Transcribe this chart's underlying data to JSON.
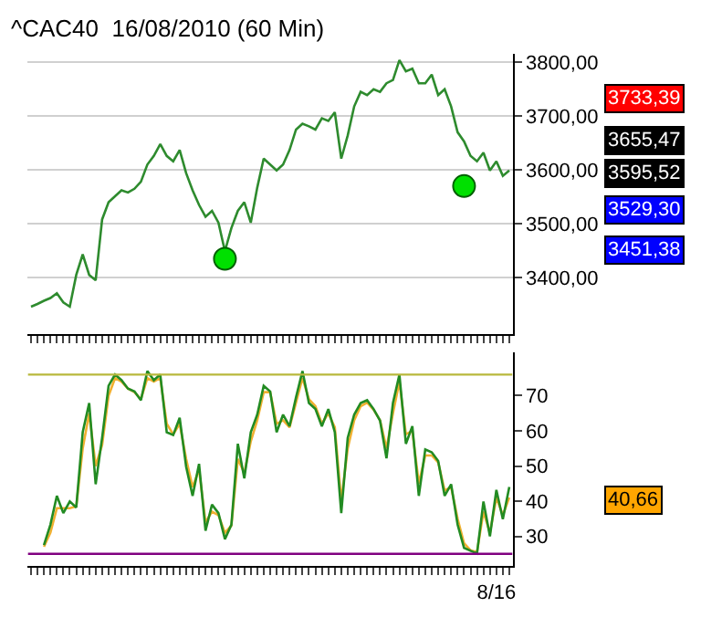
{
  "chart_data": [
    {
      "type": "line",
      "title": "^CAC40  16/08/2010 (60 Min)",
      "tick_labels": "y",
      "grid": "y",
      "categories": [
        null,
        null,
        null,
        null,
        null,
        null,
        null,
        null,
        null,
        null,
        null,
        null,
        null,
        null,
        null,
        null,
        null,
        null,
        null,
        null,
        null,
        null,
        null,
        null,
        null,
        null,
        null,
        null,
        null,
        null,
        null,
        null,
        null,
        null,
        null,
        null,
        null,
        null,
        null,
        null,
        null,
        null,
        null,
        null,
        null,
        null,
        null,
        null,
        null,
        null,
        null,
        null,
        null,
        null,
        null,
        null,
        null,
        null,
        null,
        null,
        null,
        null,
        null,
        null,
        null,
        null,
        null,
        null,
        null,
        null,
        null,
        null,
        null,
        null,
        null
      ],
      "series": [
        {
          "color": "#2e8b2e",
          "values": [
            3346,
            3351,
            3357,
            3362,
            3371,
            3354,
            3346,
            3405,
            3443,
            3405,
            3395,
            3508,
            3540,
            3551,
            3562,
            3558,
            3565,
            3578,
            3610,
            3626,
            3648,
            3626,
            3616,
            3637,
            3594,
            3562,
            3535,
            3513,
            3524,
            3502,
            3449,
            3492,
            3524,
            3540,
            3502,
            3567,
            3621,
            3610,
            3599,
            3610,
            3637,
            3675,
            3686,
            3681,
            3675,
            3696,
            3691,
            3707,
            3621,
            3664,
            3718,
            3745,
            3739,
            3750,
            3745,
            3761,
            3767,
            3804,
            3783,
            3788,
            3761,
            3761,
            3777,
            3739,
            3750,
            3718,
            3670,
            3653,
            3626,
            3616,
            3632,
            3599,
            3616,
            3589,
            3599
          ]
        },
        {
          "type": "scatter",
          "marker": "circle",
          "color": "#00e000",
          "values": [
            null,
            null,
            null,
            null,
            null,
            null,
            null,
            null,
            null,
            null,
            null,
            null,
            null,
            null,
            null,
            null,
            null,
            null,
            null,
            null,
            null,
            null,
            null,
            null,
            null,
            null,
            null,
            null,
            null,
            null,
            3435,
            null,
            null,
            null,
            null,
            null,
            null,
            null,
            null,
            null,
            null,
            null,
            null,
            null,
            null,
            null,
            null,
            null,
            null,
            null,
            null,
            null,
            null,
            null,
            null,
            null,
            null,
            null,
            null,
            null,
            null,
            null,
            null,
            null,
            null,
            null,
            null,
            3570,
            null,
            null,
            null,
            null,
            null,
            null,
            null
          ]
        }
      ],
      "ylim": [
        3295,
        3816
      ],
      "yticks": [
        {
          "value": 3400,
          "label": "3400,00"
        },
        {
          "value": 3500,
          "label": "3500,00"
        },
        {
          "value": 3600,
          "label": "3600,00"
        },
        {
          "value": 3700,
          "label": "3700,00"
        },
        {
          "value": 3800,
          "label": "3800,00"
        }
      ],
      "annotations": [
        "3733,39",
        "3655,47",
        "3595,52",
        "3529,30",
        "3451,38"
      ]
    },
    {
      "type": "line",
      "grid": false,
      "categories": [
        null,
        null,
        null,
        null,
        null,
        null,
        null,
        null,
        null,
        null,
        null,
        null,
        null,
        null,
        null,
        null,
        null,
        null,
        null,
        null,
        null,
        null,
        null,
        null,
        null,
        null,
        null,
        null,
        null,
        null,
        null,
        null,
        null,
        null,
        null,
        null,
        null,
        null,
        null,
        null,
        null,
        null,
        null,
        null,
        null,
        null,
        null,
        null,
        null,
        null,
        null,
        null,
        null,
        null,
        null,
        null,
        null,
        null,
        null,
        null,
        null,
        null,
        null,
        null,
        null,
        null,
        null,
        null,
        null,
        null,
        null,
        null,
        "8/16",
        null,
        null
      ],
      "series": [
        {
          "color": "#f0b030",
          "values": [
            null,
            null,
            27,
            31,
            38,
            38,
            38,
            38.5,
            55,
            65,
            50,
            56,
            70,
            75,
            74,
            72,
            71,
            69,
            75,
            74,
            75,
            62,
            59,
            62,
            52,
            44,
            49,
            34,
            37,
            36,
            31,
            33,
            52,
            48,
            57,
            63,
            71,
            71,
            62,
            63,
            61,
            68,
            75,
            69,
            67,
            62,
            65,
            61,
            40,
            55,
            63,
            67,
            68,
            66,
            63,
            55,
            65,
            74,
            59,
            60,
            45,
            53,
            53,
            51,
            43,
            44,
            35,
            28,
            26,
            25.5,
            37,
            31,
            41,
            36,
            41
          ]
        },
        {
          "color": "#228b22",
          "values": [
            null,
            null,
            27.5,
            33.3,
            41.5,
            36.6,
            39.9,
            38.2,
            59.6,
            67.9,
            44.8,
            58,
            72.8,
            76,
            74.4,
            72,
            71.2,
            68.7,
            77,
            74.4,
            76,
            59.6,
            58.8,
            63.7,
            49.8,
            41.5,
            50.6,
            31.6,
            39,
            36.6,
            29.2,
            33.3,
            56.3,
            46.5,
            59.6,
            64.6,
            72.8,
            71.2,
            59.6,
            64.6,
            61.3,
            69.5,
            77,
            67.9,
            66.2,
            61.3,
            66.2,
            59.6,
            36.6,
            58,
            64.6,
            67.9,
            68.7,
            66.2,
            62.9,
            52.2,
            67.9,
            76,
            56.3,
            61.3,
            41.5,
            54.7,
            53.9,
            51.4,
            41.5,
            44.8,
            33.3,
            26.7,
            25.9,
            25.1,
            39.9,
            30,
            43.2,
            34.9,
            44
          ]
        }
      ],
      "ylim": [
        21.6,
        82.3
      ],
      "yticks": [
        30,
        40,
        50,
        60,
        70
      ],
      "ref_lines": [
        {
          "axis": "y",
          "value": 76,
          "color": "#b8b83c"
        },
        {
          "axis": "y",
          "value": 25,
          "color": "#800080"
        }
      ],
      "annotations": [
        "40,66"
      ]
    }
  ]
}
